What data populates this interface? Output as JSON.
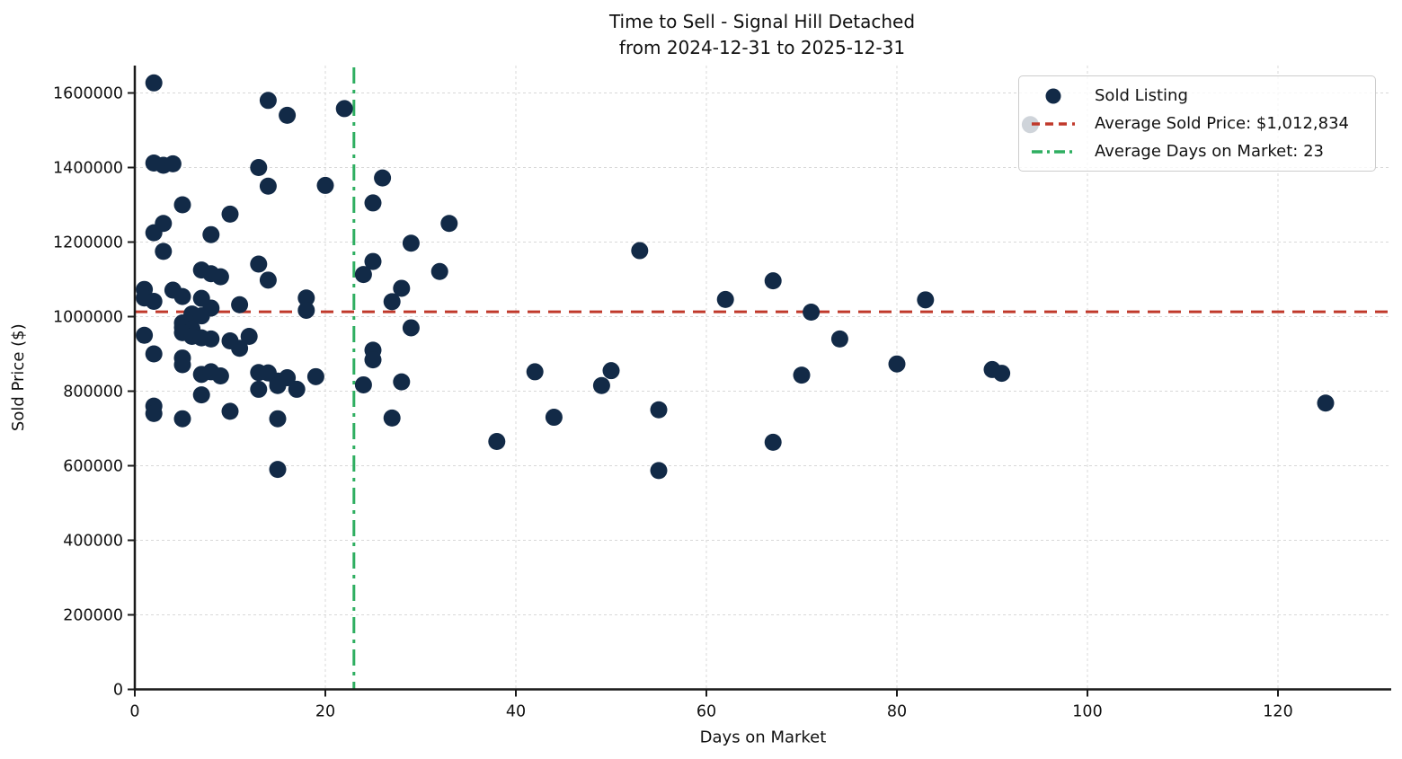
{
  "title": {
    "line1": "Time to Sell - Signal Hill Detached",
    "line2": "from 2024-12-31 to 2025-12-31"
  },
  "chart_data": {
    "type": "scatter",
    "title": "Time to Sell - Signal Hill Detached from 2024-12-31 to 2025-12-31",
    "xlabel": "Days on Market",
    "ylabel": "Sold Price ($)",
    "xlim": [
      0,
      131.6
    ],
    "ylim": [
      0,
      1680000
    ],
    "xticks": [
      0,
      20,
      40,
      60,
      80,
      100,
      120
    ],
    "yticks": [
      0,
      200000,
      400000,
      600000,
      800000,
      1000000,
      1200000,
      1400000,
      1600000
    ],
    "grid": true,
    "avg_sold_price": 1012834,
    "avg_days_on_market": 23,
    "colors": {
      "point": "#122a47",
      "avg_price_line": "#c0392b",
      "avg_days_line": "#2eae60",
      "grid": "#d8d8d8",
      "spine": "#1a1a1a"
    },
    "legend": {
      "position": "top-right",
      "items": [
        {
          "label": "Sold Listing",
          "marker": "dot",
          "color": "#122a47"
        },
        {
          "label": "Average Sold Price: $1,012,834",
          "marker": "dashed-line",
          "color": "#c0392b"
        },
        {
          "label": "Average Days on Market: 23",
          "marker": "dashdot-line",
          "color": "#2eae60"
        }
      ]
    },
    "points": [
      [
        2,
        1627000
      ],
      [
        14,
        1580000
      ],
      [
        16,
        1540000
      ],
      [
        22,
        1558000
      ],
      [
        94,
        1515000
      ],
      [
        2,
        1412000
      ],
      [
        3,
        1406000
      ],
      [
        4,
        1410000
      ],
      [
        13,
        1400000
      ],
      [
        14,
        1350000
      ],
      [
        20,
        1352000
      ],
      [
        26,
        1372000
      ],
      [
        25,
        1305000
      ],
      [
        5,
        1300000
      ],
      [
        10,
        1275000
      ],
      [
        3,
        1250000
      ],
      [
        33,
        1250000
      ],
      [
        2,
        1225000
      ],
      [
        8,
        1220000
      ],
      [
        29,
        1197000
      ],
      [
        3,
        1175000
      ],
      [
        53,
        1177000
      ],
      [
        25,
        1148000
      ],
      [
        13,
        1141000
      ],
      [
        7,
        1125000
      ],
      [
        8,
        1115000
      ],
      [
        9,
        1107000
      ],
      [
        14,
        1098000
      ],
      [
        24,
        1113000
      ],
      [
        32,
        1121000
      ],
      [
        67,
        1096000
      ],
      [
        28,
        1076000
      ],
      [
        1,
        1073000
      ],
      [
        4,
        1071000
      ],
      [
        1,
        1050000
      ],
      [
        2,
        1041000
      ],
      [
        5,
        1054000
      ],
      [
        7,
        1049000
      ],
      [
        8,
        1023000
      ],
      [
        11,
        1032000
      ],
      [
        18,
        1050000
      ],
      [
        18,
        1017000
      ],
      [
        27,
        1040000
      ],
      [
        62,
        1046000
      ],
      [
        83,
        1045000
      ],
      [
        71,
        1012000
      ],
      [
        6,
        1007000
      ],
      [
        7,
        1002000
      ],
      [
        5,
        983000
      ],
      [
        6,
        967000
      ],
      [
        29,
        970000
      ],
      [
        1,
        950000
      ],
      [
        5,
        971000
      ],
      [
        5,
        957000
      ],
      [
        6,
        947000
      ],
      [
        7,
        943000
      ],
      [
        8,
        940000
      ],
      [
        10,
        935000
      ],
      [
        11,
        915000
      ],
      [
        12,
        947000
      ],
      [
        2,
        900000
      ],
      [
        5,
        889000
      ],
      [
        5,
        871000
      ],
      [
        25,
        910000
      ],
      [
        25,
        884000
      ],
      [
        74,
        940000
      ],
      [
        42,
        852000
      ],
      [
        50,
        855000
      ],
      [
        49,
        815000
      ],
      [
        80,
        873000
      ],
      [
        90,
        858000
      ],
      [
        91,
        848000
      ],
      [
        7,
        845000
      ],
      [
        8,
        852000
      ],
      [
        9,
        841000
      ],
      [
        13,
        850000
      ],
      [
        14,
        849000
      ],
      [
        13,
        805000
      ],
      [
        15,
        827000
      ],
      [
        15,
        815000
      ],
      [
        16,
        836000
      ],
      [
        17,
        805000
      ],
      [
        19,
        839000
      ],
      [
        24,
        817000
      ],
      [
        28,
        825000
      ],
      [
        70,
        843000
      ],
      [
        7,
        790000
      ],
      [
        2,
        760000
      ],
      [
        2,
        740000
      ],
      [
        5,
        726000
      ],
      [
        10,
        746000
      ],
      [
        15,
        726000
      ],
      [
        27,
        728000
      ],
      [
        44,
        730000
      ],
      [
        55,
        750000
      ],
      [
        125,
        768000
      ],
      [
        38,
        665000
      ],
      [
        67,
        663000
      ],
      [
        15,
        590000
      ],
      [
        55,
        587000
      ]
    ]
  }
}
